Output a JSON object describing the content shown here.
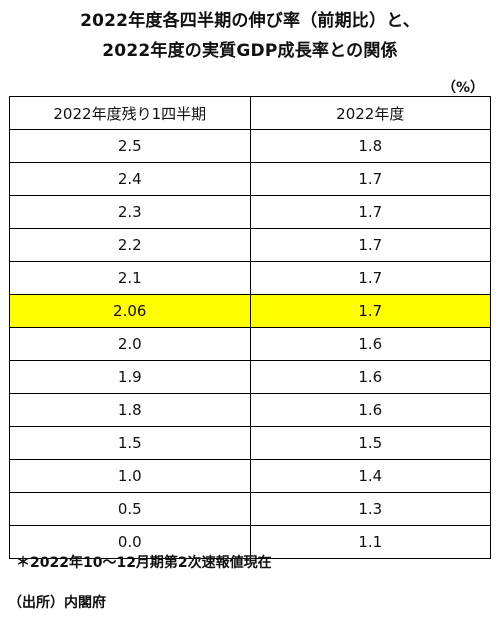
{
  "title_line1": "2022年度各四半期の伸び率（前期比）と、",
  "title_line2": "2022年度の実質GDP成長率との関係",
  "unit": "（%）",
  "note": "＊2022年10～12月期第2次速報値現在",
  "source": "（出所）内閣府",
  "colors": {
    "highlight": "#ffff00"
  },
  "chart_data": {
    "type": "table",
    "columns": [
      "2022年度残り1四半期",
      "2022年度"
    ],
    "rows": [
      {
        "q": "2.5",
        "fy": "1.8"
      },
      {
        "q": "2.4",
        "fy": "1.7"
      },
      {
        "q": "2.3",
        "fy": "1.7"
      },
      {
        "q": "2.2",
        "fy": "1.7"
      },
      {
        "q": "2.1",
        "fy": "1.7"
      },
      {
        "q": "2.06",
        "fy": "1.7",
        "highlight": true
      },
      {
        "q": "2.0",
        "fy": "1.6"
      },
      {
        "q": "1.9",
        "fy": "1.6"
      },
      {
        "q": "1.8",
        "fy": "1.6"
      },
      {
        "q": "1.5",
        "fy": "1.5"
      },
      {
        "q": "1.0",
        "fy": "1.4"
      },
      {
        "q": "0.5",
        "fy": "1.3"
      },
      {
        "q": "0.0",
        "fy": "1.1"
      }
    ]
  }
}
